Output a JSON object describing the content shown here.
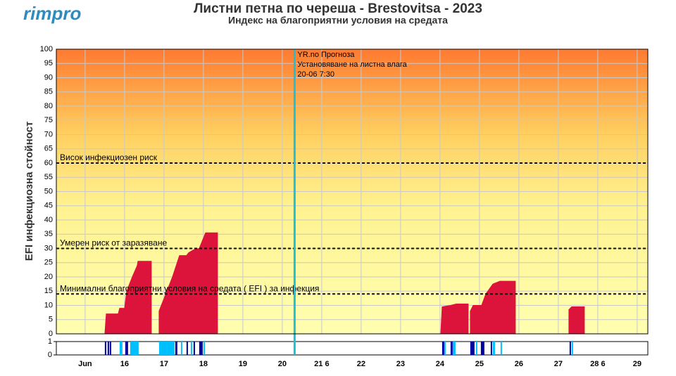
{
  "logo": "rimpro",
  "chart_data": [
    {
      "type": "area",
      "title": "Листни петна по череша - Brestovitsa - 2023",
      "subtitle": "Индекс на благоприятни условия на средата",
      "y_label": "EFI инфекциозна стойност",
      "xlim": [
        14.27,
        29.27
      ],
      "xticks": [
        {
          "value": 15,
          "label": "Jun"
        },
        16,
        17,
        18,
        19,
        20,
        {
          "value": 21,
          "label": "21 6"
        },
        22,
        23,
        24,
        25,
        26,
        27,
        {
          "value": 28,
          "label": "28 6"
        },
        29
      ],
      "ylim": [
        0,
        100
      ],
      "yticks": [
        0,
        5,
        10,
        15,
        20,
        25,
        30,
        35,
        40,
        45,
        50,
        55,
        60,
        65,
        70,
        75,
        80,
        85,
        90,
        95,
        100
      ],
      "grid": true,
      "series": [
        {
          "color": "#dc143c",
          "x": [
            15.5,
            15.536,
            15.643,
            15.839,
            15.875,
            16.0,
            16.054,
            16.196,
            16.321,
            16.339,
            16.679,
            16.679,
            null,
            16.875,
            16.875,
            17.214,
            17.393,
            17.571,
            17.625,
            17.75,
            17.893,
            18.054,
            18.357,
            18.357,
            null,
            24.018,
            24.054,
            24.268,
            24.411,
            24.714,
            24.714,
            null,
            24.768,
            24.768,
            24.839,
            25.054,
            25.161,
            25.339,
            25.518,
            25.911,
            25.911,
            null,
            27.268,
            27.268,
            27.339,
            27.661,
            27.661
          ],
          "values": [
            0,
            7,
            7,
            7,
            9,
            9,
            15,
            20,
            24,
            25.5,
            25.5,
            0,
            null,
            0,
            8,
            20,
            27.5,
            27.5,
            28.5,
            29.5,
            30,
            35.5,
            35.5,
            0,
            null,
            0,
            9.5,
            10,
            10.5,
            10.5,
            0,
            null,
            0,
            8,
            10,
            10,
            14,
            17.5,
            18.5,
            18.5,
            0,
            null,
            0,
            8.5,
            9.5,
            9.5,
            0
          ]
        }
      ],
      "thresholds": [
        {
          "value": 60,
          "label": "Висок инфекциозен риск"
        },
        {
          "value": 30,
          "label": "Умерен риск от заразяване"
        },
        {
          "value": 14,
          "label": "Минимални благоприятни условия на средата ( EFI ) за инфекция"
        }
      ],
      "marker": {
        "x": 20.3125,
        "color": "#20c0d0",
        "lines": [
          "YR.no Прогноза",
          "Установяване на листна влага",
          "20-06 7:30"
        ]
      }
    },
    {
      "type": "intervals",
      "ylim": [
        0,
        1
      ],
      "yticks": [
        0,
        1
      ],
      "series": [
        {
          "color": "#0000a0",
          "x0": [
            15.5,
            15.571,
            15.625,
            16.018,
            17.286,
            17.571,
            17.75,
            17.893,
            24.054,
            24.268,
            24.768,
            25.036,
            25.286,
            27.286
          ],
          "x1": [
            15.536,
            15.607,
            15.661,
            16.089,
            17.339,
            17.607,
            17.786,
            17.982,
            24.107,
            24.321,
            24.875,
            25.125,
            25.321,
            27.321
          ],
          "values": [
            1,
            1,
            1,
            1,
            1,
            1,
            1,
            1,
            1,
            1,
            1,
            1,
            1,
            1
          ]
        },
        {
          "color": "#00bfff",
          "x0": [
            15.875,
            16.143,
            16.875,
            17.429,
            17.679,
            18.0,
            24.107,
            24.321,
            24.911,
            25.339,
            25.536,
            27.339
          ],
          "x1": [
            15.946,
            16.357,
            17.268,
            17.464,
            17.714,
            18.036,
            24.143,
            24.393,
            24.946,
            25.393,
            25.571,
            27.375
          ],
          "values": [
            1,
            1,
            1,
            1,
            1,
            1,
            1,
            1,
            1,
            1,
            1,
            1
          ]
        }
      ]
    }
  ]
}
